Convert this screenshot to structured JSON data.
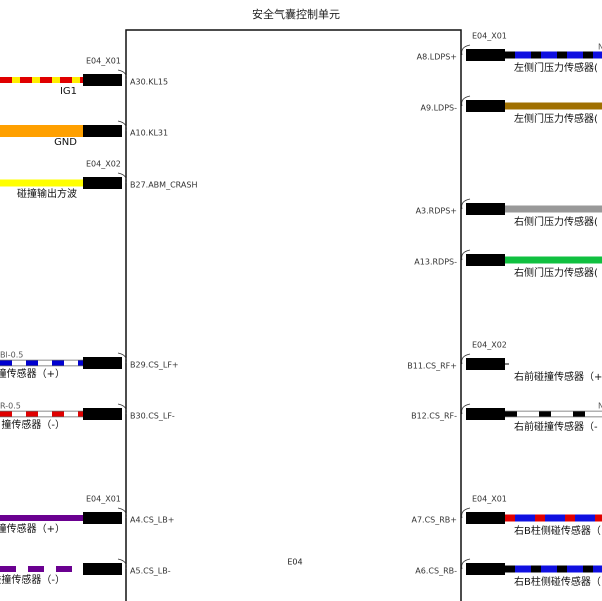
{
  "title": "安全气囊控制单元",
  "unit_label": "E04",
  "left_pins": [
    {
      "pin": "A30.KL15",
      "connector": "E04_X01",
      "wire_label": "IG1"
    },
    {
      "pin": "A10.KL31",
      "wire_label": "GND"
    },
    {
      "pin": "B27.ABM_CRASH",
      "connector": "E04_X02",
      "wire_label": "碰撞输出方波"
    },
    {
      "pin": "B29.CS_LF+",
      "gauge": "Bl-0.5",
      "wire_label": "撞传感器（+）"
    },
    {
      "pin": "B30.CS_LF-",
      "gauge": "R-0.5",
      "wire_label": "撞传感器（-）"
    },
    {
      "pin": "A4.CS_LB+",
      "connector": "E04_X01",
      "wire_label": "碰撞传感器（+）"
    },
    {
      "pin": "A5.CS_LB-",
      "wire_label": "碰撞传感器（-）"
    }
  ],
  "right_pins": [
    {
      "pin": "A8.LDPS+",
      "connector": "E04_X01",
      "gauge": "N",
      "wire_label": "左侧门压力传感器("
    },
    {
      "pin": "A9.LDPS-",
      "wire_label": "左侧门压力传感器("
    },
    {
      "pin": "A3.RDPS+",
      "wire_label": "右侧门压力传感器("
    },
    {
      "pin": "A13.RDPS-",
      "wire_label": "右侧门压力传感器("
    },
    {
      "pin": "B11.CS_RF+",
      "connector": "E04_X02",
      "wire_label": "右前碰撞传感器（+"
    },
    {
      "pin": "B12.CS_RF-",
      "gauge": "N",
      "wire_label": "右前碰撞传感器（-"
    },
    {
      "pin": "A7.CS_RB+",
      "connector": "E04_X01",
      "wire_label": "右B柱侧碰传感器（"
    },
    {
      "pin": "A6.CS_RB-",
      "wire_label": "右B柱侧碰传感器（"
    }
  ]
}
